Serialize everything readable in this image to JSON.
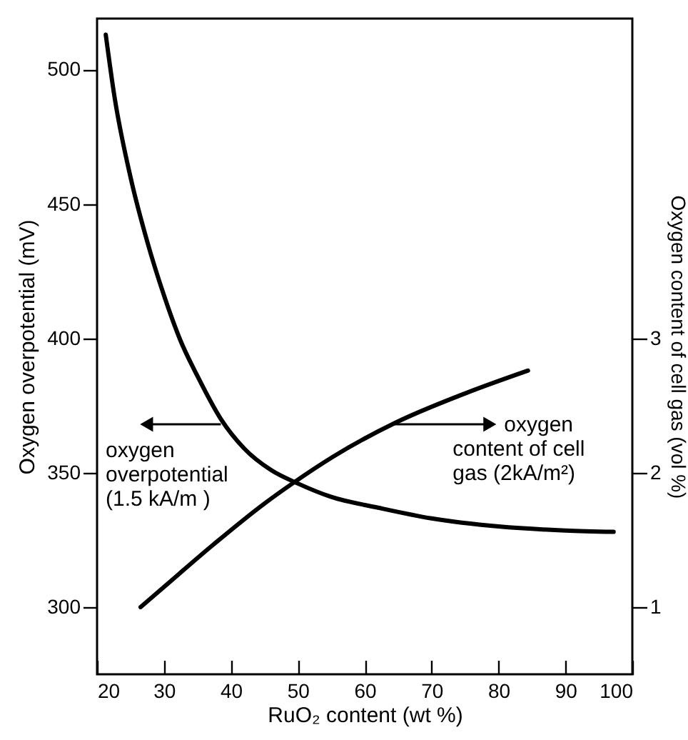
{
  "chart_data": {
    "type": "line",
    "xlabel": "RuO₂ content (wt %)",
    "ylabel": "Oxygen overpotential (mV)",
    "y2label": "Oxygen content of cell gas (vol %)",
    "xlim": [
      20,
      100
    ],
    "xticks": [
      20,
      30,
      40,
      50,
      60,
      70,
      80,
      90,
      100
    ],
    "ylim": [
      275,
      519
    ],
    "yticks": [
      300,
      350,
      400,
      450,
      500
    ],
    "y2lim": [
      0.5,
      5.38
    ],
    "y2ticks": [
      1,
      2,
      3
    ],
    "grid": false,
    "line_style": "solid",
    "series": [
      {
        "type": "line",
        "color": "#000000",
        "x": [
          21.3,
          22.6,
          25,
          27.5,
          30,
          32.5,
          35,
          38.5,
          42,
          46,
          50,
          55,
          62,
          70,
          80,
          90,
          97.2
        ],
        "values": [
          513,
          490,
          460,
          436,
          416,
          399,
          386,
          370,
          359,
          351,
          346,
          341,
          337,
          333,
          330,
          328.5,
          328
        ]
      },
      {
        "type": "line",
        "axis": "y2",
        "color": "#000000",
        "x": [
          26.5,
          30,
          37.5,
          45,
          49.2,
          55.3,
          64.5,
          75,
          84.4
        ],
        "values": [
          1.0,
          1.15,
          1.47,
          1.77,
          1.92,
          2.12,
          2.37,
          2.59,
          2.76
        ]
      }
    ],
    "annotations": [
      {
        "text": "oxygen\noverpotential\n(1.5 kA/m )",
        "x": 38.5,
        "y": 368
      },
      {
        "text": "oxygen\ncontent of cell\ngas (2kA/m²)",
        "x": 64.5,
        "y": 368
      }
    ]
  }
}
